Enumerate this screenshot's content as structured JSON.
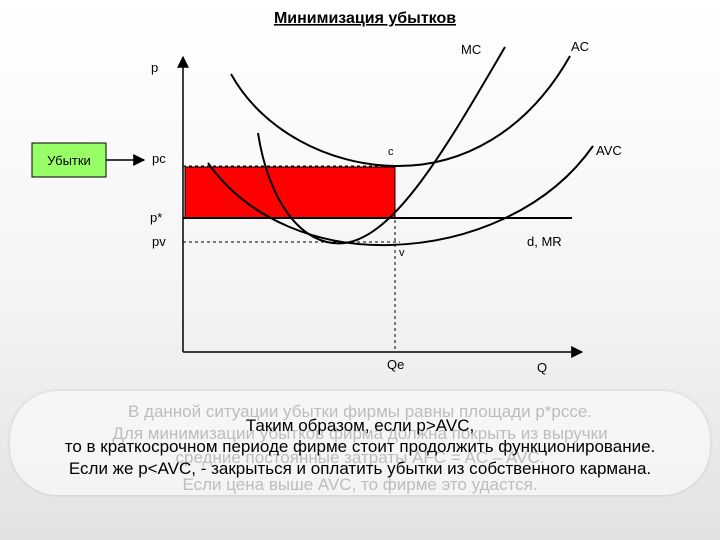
{
  "title": "Минимизация убытков",
  "labels": {
    "p_axis": "p",
    "q_axis": "Q",
    "mc": "MC",
    "ac": "AC",
    "avc": "AVC",
    "c_point": "c",
    "v_point": "v",
    "dmr": "d, MR",
    "pc": "pc",
    "p_star": "p*",
    "pv": "pv",
    "qe": "Qe",
    "losses_box": "Убытки"
  },
  "colors": {
    "loss_fill": "#ff0000",
    "losses_box_fill": "#99ff66"
  },
  "callout": {
    "ghost_lines": [
      "В данной ситуации убытки фирмы равны площади p*pcce.",
      "Для минимизации убытков фирма должна покрыть из выручки",
      "средние постоянные затраты AFC = AC – AVC.",
      "Если цена выше AVC, то фирме это удастся."
    ],
    "main_lines": [
      "Таким образом, если p>AVC,",
      "то в краткосрочном периоде фирме стоит продолжить функционирование.",
      "Если же p<AVC, - закрыться и оплатить убытки из собственного кармана."
    ]
  }
}
